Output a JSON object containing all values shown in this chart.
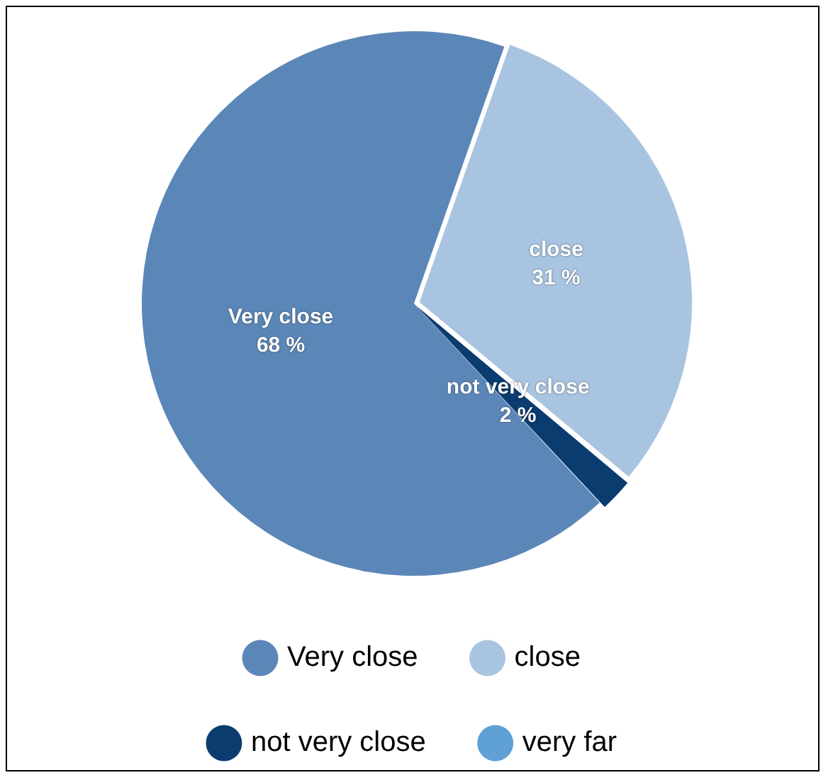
{
  "chart_data": {
    "type": "pie",
    "categories": [
      "Very close",
      "close",
      "not very close",
      "very far"
    ],
    "values": [
      68,
      31,
      2,
      0
    ],
    "value_labels": [
      "68 %",
      "31 %",
      "2 %",
      null
    ],
    "colors": [
      "#5b87b8",
      "#a9c4e0",
      "#0b3c70",
      "#5fa0d6"
    ],
    "legend": "bottom"
  }
}
